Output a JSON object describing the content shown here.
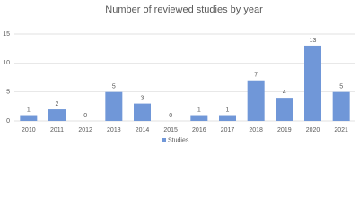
{
  "chart_data": {
    "type": "bar",
    "title": "Number of reviewed studies by year",
    "categories": [
      "2010",
      "2011",
      "2012",
      "2013",
      "2014",
      "2015",
      "2016",
      "2017",
      "2018",
      "2019",
      "2020",
      "2021"
    ],
    "series": [
      {
        "name": "Studies",
        "color": "#7097d8",
        "values": [
          1,
          2,
          0,
          5,
          3,
          0,
          1,
          1,
          7,
          4,
          13,
          5
        ]
      }
    ],
    "ylim": [
      0,
      15
    ],
    "yticks": [
      0,
      5,
      10,
      15
    ],
    "grid": true,
    "legend": "bottom"
  }
}
